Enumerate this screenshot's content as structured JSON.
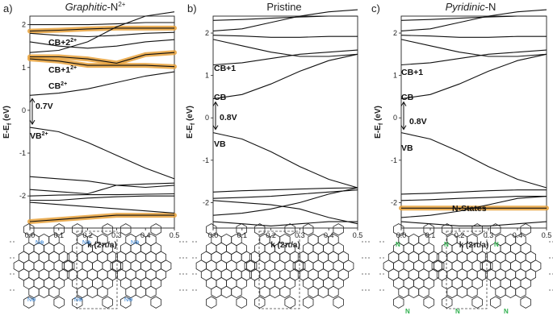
{
  "figure": {
    "panels": [
      {
        "key": "a",
        "label": "a)",
        "title_main": "Graphitic",
        "title_rest": "-N",
        "title_sup": "2+",
        "italic": true,
        "annotations": {
          "cb2": "CB+2",
          "cb2_sup": "2+",
          "cb1": "CB+1",
          "cb1_sup": "2+",
          "cb": "CB",
          "cb_sup": "2+",
          "gap": "0.7V",
          "vb": "VB",
          "vb_sup": "2+"
        }
      },
      {
        "key": "b",
        "label": "b)",
        "title_main": "Pristine",
        "italic": false,
        "annotations": {
          "cb1": "CB+1",
          "cb": "CB",
          "gap": "0.8V",
          "vb": "VB"
        }
      },
      {
        "key": "c",
        "label": "c)",
        "title_main": "Pyridinic",
        "title_rest": "-N",
        "italic": true,
        "annotations": {
          "cb1": "CB+1",
          "cb": "CB",
          "gap": "0.8V",
          "vb": "VB",
          "nstates": "N-States"
        }
      }
    ],
    "yaxis_label": "E-E",
    "yaxis_sub": "f",
    "yaxis_unit": " (eV)",
    "xaxis_label": "k (2π/a)",
    "n_label": "N",
    "charge_label": "⊕"
  },
  "chart_data": [
    {
      "type": "line",
      "title": "Graphitic-N2+",
      "xlabel": "k (2π/a)",
      "ylabel": "E-Ef (eV)",
      "xlim": [
        0.0,
        0.5
      ],
      "ylim": [
        -2.75,
        2.2
      ],
      "xticks": [
        "0.0",
        "0.1",
        "0.2",
        "0.3",
        "0.4",
        "0.5"
      ],
      "yticks": [
        "-2",
        "-1",
        "0",
        "1",
        "2"
      ],
      "x": [
        0.0,
        0.1,
        0.2,
        0.3,
        0.4,
        0.5
      ],
      "series": [
        {
          "name": "band1",
          "values": [
            2.0,
            2.0,
            2.0,
            2.02,
            2.05,
            2.05
          ]
        },
        {
          "name": "CB+2",
          "values": [
            1.85,
            1.87,
            1.9,
            1.92,
            1.92,
            1.92
          ]
        },
        {
          "name": "band3",
          "values": [
            1.8,
            1.75,
            1.72,
            1.75,
            1.8,
            1.82
          ]
        },
        {
          "name": "band4",
          "values": [
            1.6,
            1.5,
            1.45,
            1.5,
            1.6,
            1.65
          ]
        },
        {
          "name": "band5",
          "values": [
            1.35,
            1.4,
            1.6,
            1.95,
            2.2,
            2.3
          ]
        },
        {
          "name": "CB+1 upper",
          "values": [
            1.25,
            1.25,
            1.2,
            1.1,
            1.3,
            1.35
          ]
        },
        {
          "name": "CB+1 lower",
          "values": [
            1.2,
            1.15,
            1.05,
            1.05,
            1.05,
            1.02
          ]
        },
        {
          "name": "CB",
          "values": [
            0.35,
            0.4,
            0.5,
            0.65,
            0.8,
            0.9
          ]
        },
        {
          "name": "VB",
          "values": [
            -0.4,
            -0.5,
            -0.75,
            -1.05,
            -1.35,
            -1.6
          ]
        },
        {
          "name": "band10",
          "values": [
            -1.55,
            -1.6,
            -1.65,
            -1.75,
            -1.8,
            -1.75
          ]
        },
        {
          "name": "band11",
          "values": [
            -1.85,
            -1.9,
            -1.95,
            -1.75,
            -1.72,
            -1.7
          ]
        },
        {
          "name": "band12",
          "values": [
            -2.0,
            -1.98,
            -1.97,
            -1.97,
            -1.96,
            -1.95
          ]
        },
        {
          "name": "band13",
          "values": [
            -2.1,
            -2.1,
            -2.05,
            -2.02,
            -2.0,
            -2.0
          ]
        },
        {
          "name": "band14",
          "values": [
            -2.15,
            -2.2,
            -2.25,
            -2.3,
            -2.35,
            -2.4
          ]
        },
        {
          "name": "band15",
          "values": [
            -2.6,
            -2.55,
            -2.5,
            -2.45,
            -2.45,
            -2.45
          ]
        }
      ],
      "highlighted": [
        "CB+2",
        "CB+1 upper",
        "CB+1 lower",
        "band15"
      ]
    },
    {
      "type": "line",
      "title": "Pristine",
      "xlabel": "k (2π/a)",
      "ylabel": "E-Ef (eV)",
      "xlim": [
        0.0,
        0.5
      ],
      "ylim": [
        -2.6,
        2.4
      ],
      "xticks": [
        "0.0",
        "0.1",
        "0.2",
        "0.3",
        "0.4",
        "0.5"
      ],
      "yticks": [
        "-2",
        "-1",
        "0",
        "1",
        "2"
      ],
      "x": [
        0.0,
        0.1,
        0.2,
        0.3,
        0.4,
        0.5
      ],
      "series": [
        {
          "name": "band1",
          "values": [
            2.3,
            2.32,
            2.35,
            2.38,
            2.4,
            2.4
          ]
        },
        {
          "name": "band2",
          "values": [
            2.05,
            2.1,
            2.25,
            2.4,
            2.5,
            2.55
          ]
        },
        {
          "name": "band3",
          "values": [
            1.95,
            1.93,
            1.9,
            1.9,
            1.92,
            1.92
          ]
        },
        {
          "name": "band4",
          "values": [
            1.85,
            1.7,
            1.55,
            1.45,
            1.45,
            1.5
          ]
        },
        {
          "name": "CB+1",
          "values": [
            1.25,
            1.3,
            1.4,
            1.5,
            1.55,
            1.6
          ]
        },
        {
          "name": "CB",
          "values": [
            0.45,
            0.55,
            0.8,
            1.1,
            1.35,
            1.5
          ]
        },
        {
          "name": "VB",
          "values": [
            -0.35,
            -0.5,
            -0.8,
            -1.15,
            -1.45,
            -1.65
          ]
        },
        {
          "name": "band8",
          "values": [
            -1.75,
            -1.72,
            -1.7,
            -1.68,
            -1.66,
            -1.65
          ]
        },
        {
          "name": "band9",
          "values": [
            -1.9,
            -1.88,
            -1.85,
            -1.8,
            -1.75,
            -1.7
          ]
        },
        {
          "name": "band10",
          "values": [
            -1.95,
            -2.0,
            -2.05,
            -2.15,
            -2.35,
            -2.5
          ]
        },
        {
          "name": "band11",
          "values": [
            -2.3,
            -2.25,
            -2.15,
            -2.0,
            -1.8,
            -1.65
          ]
        },
        {
          "name": "band12",
          "values": [
            -2.45,
            -2.5,
            -2.55,
            -2.5,
            -2.45,
            -2.45
          ]
        }
      ],
      "highlighted": []
    },
    {
      "type": "line",
      "title": "Pyridinic-N",
      "xlabel": "k (2π/a)",
      "ylabel": "E-Ef (eV)",
      "xlim": [
        0.0,
        0.5
      ],
      "ylim": [
        -2.6,
        2.4
      ],
      "xticks": [
        "0.0",
        "0.1",
        "0.2",
        "0.3",
        "0.4",
        "0.5"
      ],
      "yticks": [
        "-2",
        "-1",
        "0",
        "1",
        "2"
      ],
      "x": [
        0.0,
        0.1,
        0.2,
        0.3,
        0.4,
        0.5
      ],
      "series": [
        {
          "name": "band1",
          "values": [
            2.3,
            2.32,
            2.35,
            2.38,
            2.4,
            2.4
          ]
        },
        {
          "name": "band2",
          "values": [
            2.05,
            2.1,
            2.25,
            2.4,
            2.5,
            2.55
          ]
        },
        {
          "name": "band3",
          "values": [
            1.95,
            1.93,
            1.9,
            1.9,
            1.92,
            1.92
          ]
        },
        {
          "name": "band4",
          "values": [
            1.85,
            1.7,
            1.55,
            1.45,
            1.45,
            1.5
          ]
        },
        {
          "name": "CB+1",
          "values": [
            1.25,
            1.3,
            1.4,
            1.5,
            1.55,
            1.6
          ]
        },
        {
          "name": "CB",
          "values": [
            0.45,
            0.55,
            0.8,
            1.1,
            1.35,
            1.5
          ]
        },
        {
          "name": "VB",
          "values": [
            -0.35,
            -0.5,
            -0.8,
            -1.15,
            -1.45,
            -1.65
          ]
        },
        {
          "name": "band8",
          "values": [
            -1.8,
            -1.78,
            -1.75,
            -1.72,
            -1.7,
            -1.7
          ]
        },
        {
          "name": "band9",
          "values": [
            -1.95,
            -1.93,
            -1.9,
            -1.88,
            -1.85,
            -1.85
          ]
        },
        {
          "name": "N-States",
          "values": [
            -2.13,
            -2.13,
            -2.13,
            -2.13,
            -2.13,
            -2.13
          ]
        },
        {
          "name": "band11",
          "values": [
            -2.35,
            -2.3,
            -2.2,
            -2.05,
            -1.9,
            -1.85
          ]
        },
        {
          "name": "band12",
          "values": [
            -2.45,
            -2.5,
            -2.55,
            -2.55,
            -2.5,
            -2.45
          ]
        }
      ],
      "highlighted": [
        "N-States"
      ]
    }
  ]
}
